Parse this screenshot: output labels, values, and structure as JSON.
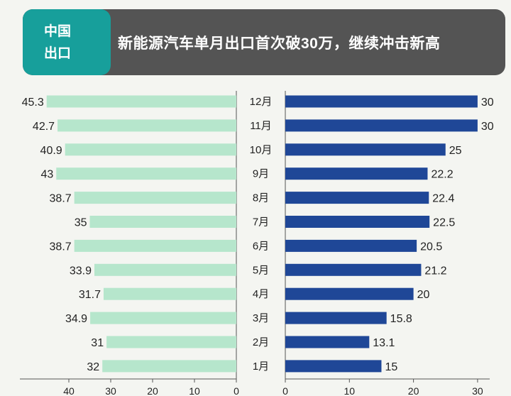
{
  "header": {
    "badge_line1": "中国",
    "badge_line2": "出口",
    "title": "新能源汽车单月出口首次破30万，继续冲击新高"
  },
  "colors": {
    "banner_bg": "#545454",
    "badge_bg": "#179f9b",
    "left_bar": "#b6e6cc",
    "right_bar": "#1f4797"
  },
  "chart_data": {
    "type": "bar",
    "orientation": "horizontal-butterfly",
    "categories": [
      "12月",
      "11月",
      "10月",
      "9月",
      "8月",
      "7月",
      "6月",
      "5月",
      "4月",
      "3月",
      "2月",
      "1月"
    ],
    "series": [
      {
        "values": [
          45.3,
          42.7,
          40.9,
          43,
          38.7,
          35,
          38.7,
          33.9,
          31.7,
          34.9,
          31,
          32
        ]
      },
      {
        "values": [
          30,
          30,
          25,
          22.2,
          22.4,
          22.5,
          20.5,
          21.2,
          20,
          15.8,
          13.1,
          15
        ]
      }
    ],
    "left_axis": {
      "ticks": [
        40,
        30,
        20,
        10,
        0
      ],
      "lim": [
        0,
        45.3
      ]
    },
    "right_axis": {
      "ticks": [
        0,
        10,
        20,
        30
      ],
      "lim": [
        0,
        30
      ]
    }
  }
}
